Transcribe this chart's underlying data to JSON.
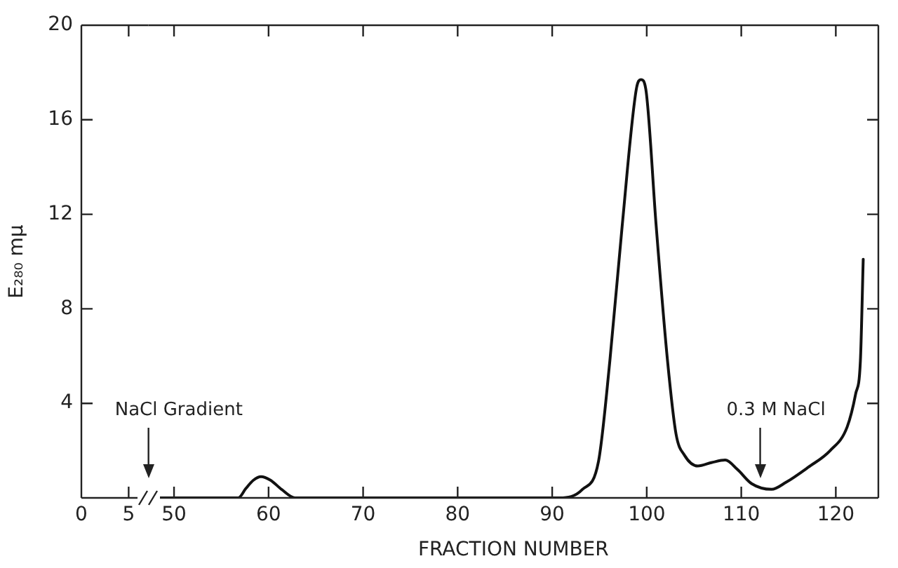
{
  "chart_data": [
    {
      "type": "line",
      "ylabel": "E₂₈₀ mμ",
      "xlim": [
        0,
        7.1
      ],
      "xticks": [
        0,
        5
      ],
      "ylim": [
        0,
        20
      ],
      "yticks": [
        4,
        8,
        12,
        16,
        20
      ],
      "grid": false
    },
    {
      "type": "line",
      "xlabel": "FRACTION NUMBER",
      "xlim": [
        47.3,
        124.5
      ],
      "xticks": [
        50,
        60,
        70,
        80,
        90,
        100,
        110,
        120
      ],
      "ylim": [
        0,
        20
      ],
      "yticks": [
        4,
        8,
        12,
        16,
        20
      ],
      "tick_labels": "x",
      "grid": false,
      "marker": "none",
      "line_style": "solid",
      "ref_lines": [
        {
          "axis": "x",
          "value": 47.3,
          "label": "NaCl Gradient"
        },
        {
          "axis": "x",
          "value": 112,
          "label": "0.3 M NaCl"
        }
      ],
      "series": [
        {
          "color": "#111111",
          "x": [
            47.3,
            56.8,
            57.6,
            58.4,
            59.2,
            60.2,
            61.4,
            62.8,
            90.8,
            93.2,
            94.9,
            96.1,
            97.4,
            98.9,
            99.4,
            99.9,
            101,
            102.2,
            103.1,
            104,
            105.4,
            106.9,
            108.3,
            109.6,
            111.1,
            113.2,
            114.7,
            117.1,
            119.4,
            121.2,
            122.1,
            122.6,
            122.9
          ],
          "values": [
            0,
            0,
            0.4,
            0.75,
            0.9,
            0.75,
            0.35,
            0,
            0,
            0.36,
            1.55,
            5.8,
            11.5,
            17.3,
            17.7,
            17.3,
            11.5,
            5.8,
            2.7,
            1.8,
            1.35,
            1.5,
            1.6,
            1.2,
            0.6,
            0.36,
            0.65,
            1.3,
            2,
            3,
            4.4,
            5.8,
            10.1
          ]
        }
      ]
    }
  ]
}
